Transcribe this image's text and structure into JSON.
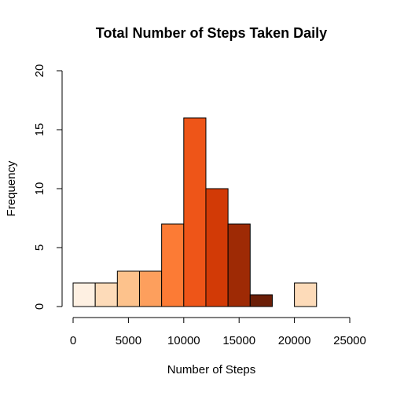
{
  "chart_data": {
    "type": "bar",
    "title": "Total Number of Steps Taken Daily",
    "xlabel": "Number of Steps",
    "ylabel": "Frequency",
    "xlim": [
      0,
      25000
    ],
    "ylim": [
      0,
      20
    ],
    "x_ticks": [
      "0",
      "5000",
      "10000",
      "15000",
      "20000",
      "25000"
    ],
    "y_ticks": [
      "0",
      "5",
      "10",
      "15",
      "20"
    ],
    "bin_width": 2000,
    "bins": [
      {
        "start": 0,
        "end": 2000,
        "count": 2,
        "color": "#FEF0E2"
      },
      {
        "start": 2000,
        "end": 4000,
        "count": 2,
        "color": "#FDDBB9"
      },
      {
        "start": 4000,
        "end": 6000,
        "count": 3,
        "color": "#FDC28C"
      },
      {
        "start": 6000,
        "end": 8000,
        "count": 3,
        "color": "#FD9F5D"
      },
      {
        "start": 8000,
        "end": 10000,
        "count": 7,
        "color": "#FC7B35"
      },
      {
        "start": 10000,
        "end": 12000,
        "count": 16,
        "color": "#EE5518"
      },
      {
        "start": 12000,
        "end": 14000,
        "count": 10,
        "color": "#D23A06"
      },
      {
        "start": 14000,
        "end": 16000,
        "count": 7,
        "color": "#9E2A05"
      },
      {
        "start": 16000,
        "end": 18000,
        "count": 1,
        "color": "#6B1E07"
      },
      {
        "start": 18000,
        "end": 20000,
        "count": 0,
        "color": "#FEF0E2"
      },
      {
        "start": 20000,
        "end": 22000,
        "count": 2,
        "color": "#FDDBB9"
      }
    ],
    "grid": false,
    "legend": "none"
  }
}
